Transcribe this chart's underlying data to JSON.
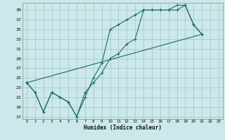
{
  "title": "",
  "xlabel": "Humidex (Indice chaleur)",
  "bg_color": "#cce8ea",
  "grid_color": "#aacdd0",
  "line_color": "#1a6b6b",
  "xlim": [
    -0.5,
    23.5
  ],
  "ylim": [
    16.5,
    40.5
  ],
  "xticks": [
    0,
    1,
    2,
    3,
    4,
    5,
    6,
    7,
    8,
    9,
    10,
    11,
    12,
    13,
    14,
    15,
    16,
    17,
    18,
    19,
    20,
    21,
    22,
    23
  ],
  "yticks": [
    17,
    19,
    21,
    23,
    25,
    27,
    29,
    31,
    33,
    35,
    37,
    39
  ],
  "line1_x": [
    0,
    1,
    2,
    3,
    4,
    5,
    6,
    7,
    8,
    9,
    10,
    11,
    12,
    13,
    14,
    15,
    16,
    17,
    18,
    19,
    20,
    21
  ],
  "line1_y": [
    24,
    22,
    18,
    22,
    21,
    20,
    17,
    21,
    25,
    28,
    35,
    36,
    37,
    38,
    39,
    39,
    39,
    39,
    39,
    40,
    36,
    34
  ],
  "line2_x": [
    0,
    1,
    2,
    3,
    4,
    5,
    6,
    7,
    8,
    9,
    10,
    11,
    12,
    13,
    14,
    15,
    16,
    17,
    18,
    19,
    20,
    21
  ],
  "line2_y": [
    24,
    22,
    18,
    22,
    21,
    20,
    17,
    22,
    24,
    26,
    29,
    30,
    32,
    33,
    39,
    39,
    39,
    39,
    40,
    40,
    36,
    34
  ],
  "line3_x": [
    0,
    21
  ],
  "line3_y": [
    24,
    34
  ]
}
